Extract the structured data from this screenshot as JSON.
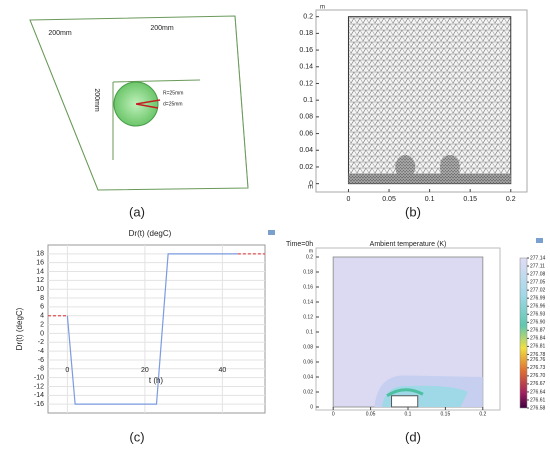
{
  "panels": {
    "a": {
      "label": "(a)",
      "dims": [
        "200mm",
        "200mm",
        "200mm"
      ],
      "radius": "R=25mm",
      "distance": "d=25mm"
    },
    "b": {
      "label": "(b)",
      "x_unit": "m",
      "y_unit": "m",
      "xlim": [
        -0.04,
        0.22
      ],
      "ylim": [
        -0.01,
        0.208
      ],
      "xticks": [
        0,
        0.05,
        0.1,
        0.15,
        0.2
      ],
      "yticks": [
        0,
        0.02,
        0.04,
        0.06,
        0.08,
        0.1,
        0.12,
        0.14,
        0.16,
        0.18,
        0.2
      ]
    },
    "d": {
      "label": "(d)",
      "title": "Ambient temperature (K)",
      "time": "Time=0h",
      "y_unit": "m",
      "xlim": [
        -0.023,
        0.223
      ],
      "ylim": [
        -0.004,
        0.212
      ],
      "xticks": [
        0,
        0.05,
        0.1,
        0.15,
        0.2
      ],
      "yticks": [
        0,
        0.02,
        0.04,
        0.06,
        0.08,
        0.1,
        0.12,
        0.14,
        0.16,
        0.18,
        0.2
      ],
      "colorbar_ticks": [
        277.14,
        277.11,
        277.08,
        277.05,
        277.02,
        276.99,
        276.96,
        276.93,
        {
          "value": 276.9,
          "label": "276.90"
        },
        276.87,
        276.84,
        276.81,
        276.78,
        276.76,
        276.73,
        {
          "value": 276.7,
          "label": "276.70"
        },
        276.67,
        276.64,
        276.61,
        276.58
      ]
    }
  },
  "chart_data": {
    "type": "line",
    "panel_label": "(c)",
    "title": "Dr(t) (degC)",
    "x_label": "t (h)",
    "y_label": "Dr(t) (degC)",
    "x": [
      -5,
      0,
      2,
      23,
      26,
      44,
      51
    ],
    "series": [
      {
        "color": "#7b9be0",
        "values": [
          null,
          4,
          -16,
          -16,
          18,
          18,
          null
        ]
      },
      {
        "color": "#e05050",
        "dashed": true,
        "values": [
          4,
          4,
          null,
          null,
          null,
          18,
          18
        ]
      }
    ],
    "xlim": [
      -5,
      51
    ],
    "ylim": [
      -18,
      20
    ],
    "xticks": [
      0,
      20,
      40
    ],
    "yticks": [
      -16,
      -14,
      -12,
      -10,
      -8,
      -6,
      -4,
      -2,
      0,
      2,
      4,
      6,
      8,
      10,
      12,
      14,
      16,
      18
    ],
    "grid": true
  }
}
